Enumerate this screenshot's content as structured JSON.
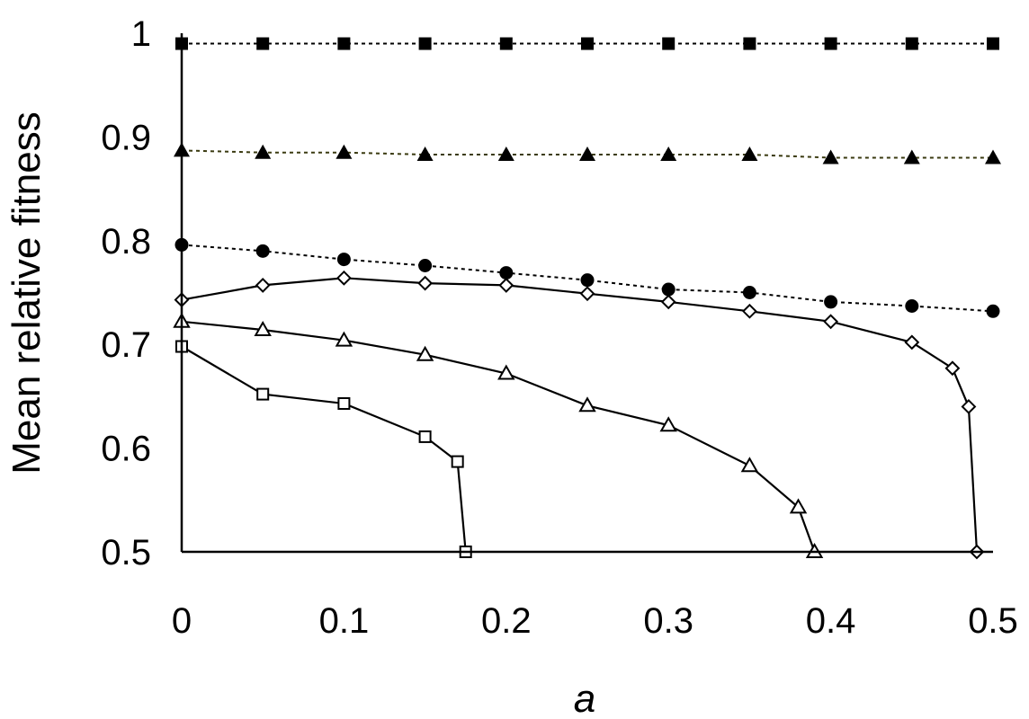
{
  "chart_data": {
    "type": "line",
    "xlabel": "a",
    "ylabel": "Mean relative fitness",
    "xlim": [
      0,
      0.5
    ],
    "ylim": [
      0.5,
      1.0
    ],
    "xticks": [
      "0",
      "0.1",
      "0.2",
      "0.3",
      "0.4",
      "0.5"
    ],
    "yticks": [
      "0.5",
      "0.6",
      "0.7",
      "0.8",
      "0.9",
      "1"
    ],
    "grid": false,
    "legend": "none",
    "series": [
      {
        "marker": "filled-square",
        "line": "dotted",
        "color": "#000000",
        "x": [
          0,
          0.05,
          0.1,
          0.15,
          0.2,
          0.25,
          0.3,
          0.35,
          0.4,
          0.45,
          0.5
        ],
        "y": [
          0.99,
          0.99,
          0.99,
          0.99,
          0.99,
          0.99,
          0.99,
          0.99,
          0.99,
          0.99,
          0.99
        ]
      },
      {
        "marker": "filled-triangle",
        "line": "dotted",
        "color": "#3a3a10",
        "x": [
          0,
          0.05,
          0.1,
          0.15,
          0.2,
          0.25,
          0.3,
          0.35,
          0.4,
          0.45,
          0.5
        ],
        "y": [
          0.887,
          0.885,
          0.885,
          0.883,
          0.883,
          0.883,
          0.883,
          0.883,
          0.88,
          0.88,
          0.88
        ]
      },
      {
        "marker": "filled-circle",
        "line": "dotted",
        "color": "#000000",
        "x": [
          0,
          0.05,
          0.1,
          0.15,
          0.2,
          0.25,
          0.3,
          0.35,
          0.4,
          0.45,
          0.5
        ],
        "y": [
          0.796,
          0.79,
          0.782,
          0.776,
          0.769,
          0.762,
          0.753,
          0.75,
          0.741,
          0.737,
          0.732
        ]
      },
      {
        "marker": "open-diamond",
        "line": "solid",
        "color": "#000000",
        "x": [
          0,
          0.05,
          0.1,
          0.15,
          0.2,
          0.25,
          0.3,
          0.35,
          0.4,
          0.45,
          0.475,
          0.485,
          0.49
        ],
        "y": [
          0.743,
          0.757,
          0.764,
          0.759,
          0.757,
          0.749,
          0.741,
          0.732,
          0.722,
          0.702,
          0.677,
          0.64,
          0.5
        ]
      },
      {
        "marker": "open-triangle",
        "line": "solid",
        "color": "#000000",
        "x": [
          0,
          0.05,
          0.1,
          0.15,
          0.2,
          0.25,
          0.3,
          0.35,
          0.38,
          0.39
        ],
        "y": [
          0.722,
          0.714,
          0.704,
          0.69,
          0.672,
          0.641,
          0.622,
          0.583,
          0.543,
          0.5
        ]
      },
      {
        "marker": "open-square",
        "line": "solid",
        "color": "#000000",
        "x": [
          0,
          0.05,
          0.1,
          0.15,
          0.17,
          0.175
        ],
        "y": [
          0.698,
          0.652,
          0.643,
          0.611,
          0.587,
          0.5
        ]
      }
    ]
  }
}
